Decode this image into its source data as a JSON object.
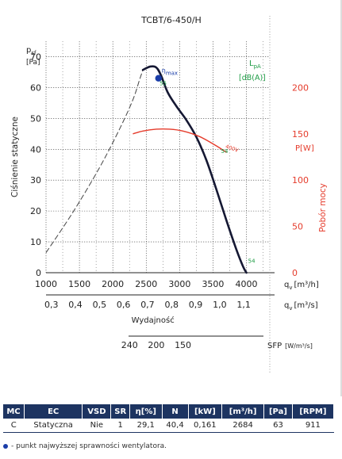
{
  "chart_data": {
    "type": "line",
    "title": "TCBT/6-450/H",
    "y_label": "Ciśnienie statyczne",
    "y_unit_top": "p",
    "y_unit_sub": "sf",
    "y_unit_bracket": "[Pa]",
    "y_ticks": [
      0,
      10,
      20,
      30,
      40,
      50,
      60,
      70
    ],
    "ylim": [
      0,
      75
    ],
    "x_ticks_m3h": [
      1000,
      1500,
      2000,
      2500,
      3000,
      3500,
      4000
    ],
    "x_label_m3h_main": "q",
    "x_label_m3h_sub": "v",
    "x_label_m3h_unit": "[m³/h]",
    "x_ticks_m3s": [
      "0,3",
      "0,4",
      "0,5",
      "0,6",
      "0,7",
      "0,8",
      "0,9",
      "1,0",
      "1,1"
    ],
    "x_label_m3s_main": "q",
    "x_label_m3s_sub": "v",
    "x_label_m3s_unit": "[m³/s]",
    "xlim": [
      1000,
      4350
    ],
    "x_caption": "Wydajność",
    "power_axis_label": "Pobór mocy",
    "power_unit": "P[W]",
    "power_ticks": [
      0,
      50,
      100,
      150,
      200
    ],
    "power_max": 250,
    "noise_label_main": "L",
    "noise_label_sub": "pA",
    "noise_unit": "[dB(A)]",
    "sfp_label": "SFP",
    "sfp_unit": "[W/m³/s]",
    "sfp_ticks": [
      "240",
      "200",
      "150"
    ],
    "sfp_tick_x": [
      2250,
      2650,
      3050
    ],
    "eta_label_main": "η",
    "eta_label_sub": "max",
    "grid": true,
    "series": [
      {
        "kind": "pressure_unstable",
        "x": [
          1000,
          1400,
          1800,
          2100,
          2300,
          2400,
          2450
        ],
        "y": [
          6.5,
          19.5,
          34,
          46.5,
          56,
          62.5,
          65.7
        ]
      },
      {
        "kind": "pressure",
        "x": [
          2450,
          2560,
          2650,
          2720,
          2820,
          2950,
          3100,
          3250,
          3400,
          3550,
          3700,
          3850,
          3950,
          4000
        ],
        "y": [
          65.7,
          66.8,
          66.5,
          64,
          58.5,
          54,
          49.5,
          44,
          36.5,
          27,
          17,
          7.5,
          2,
          0
        ]
      },
      {
        "kind": "power",
        "x": [
          2300,
          2450,
          2650,
          2850,
          3050,
          3300,
          3550,
          3700
        ],
        "y": [
          150,
          153,
          155,
          155,
          153,
          147,
          137,
          130
        ]
      }
    ],
    "eta_point": {
      "x": 2684,
      "y": 63
    },
    "noise_labels": [
      {
        "text": "55",
        "x": 2700,
        "y": 60.8
      },
      {
        "text": "54",
        "x": 3620,
        "y": 38.8
      },
      {
        "text": "54",
        "x": 4025,
        "y": 3.2
      }
    ],
    "power_curve_label": {
      "text": "400V",
      "x": 3680,
      "y": 135
    },
    "colors": {
      "pressure": "#151833",
      "power": "#e53b2b",
      "noise": "#1e9c45",
      "eta": "#1a3da8",
      "grid": "#3b3b3b",
      "header": "#1d3461"
    }
  },
  "table": {
    "headers": [
      "MC",
      "EC",
      "VSD",
      "SR",
      "η[%]",
      "N",
      "[kW]",
      "[m³/h]",
      "[Pa]",
      "[RPM]"
    ],
    "row": [
      "C",
      "Statyczna",
      "Nie",
      "1",
      "29,1",
      "40,4",
      "0,161",
      "2684",
      "63",
      "911"
    ]
  },
  "footnote": "- punkt najwyższej sprawności wentylatora."
}
